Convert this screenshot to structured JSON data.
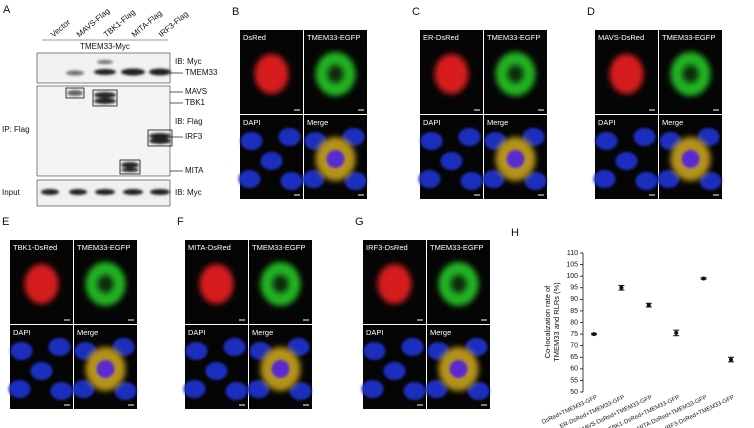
{
  "panel_a": {
    "letter": "A",
    "lanes": [
      "Vector",
      "MAVS-Flag",
      "TBK1-Flag",
      "MITA-Flag",
      "IRF3-Flag"
    ],
    "header": "TMEM33-Myc",
    "blot_labels": [
      "IB: Myc",
      "TMEM33",
      "MAVS",
      "TBK1",
      "IB: Flag",
      "IRF3",
      "MITA",
      "IB: Myc"
    ],
    "row_labels": [
      "IP: Flag",
      "Input"
    ]
  },
  "image_panels": [
    {
      "letter": "B",
      "labels": [
        "DsRed",
        "TMEM33-EGFP",
        "DAPI",
        "Merge"
      ]
    },
    {
      "letter": "C",
      "labels": [
        "ER-DsRed",
        "TMEM33-EGFP",
        "DAPI",
        "Merge"
      ]
    },
    {
      "letter": "D",
      "labels": [
        "MAVS-DsRed",
        "TMEM33-EGFP",
        "DAPI",
        "Merge"
      ]
    },
    {
      "letter": "E",
      "labels": [
        "TBK1-DsRed",
        "TMEM33-EGFP",
        "DAPI",
        "Merge"
      ]
    },
    {
      "letter": "F",
      "labels": [
        "MITA-DsRed",
        "TMEM33-EGFP",
        "DAPI",
        "Merge"
      ]
    },
    {
      "letter": "G",
      "labels": [
        "IRF3-DsRed",
        "TMEM33-EGFP",
        "DAPI",
        "Merge"
      ]
    }
  ],
  "chart_data": {
    "type": "point",
    "panel_letter": "H",
    "ylabel": [
      "Co-localization rate of",
      "TMEM33 and RLRs (%)"
    ],
    "categories": [
      "DsRed+TMEM33-GFP",
      "ER-DsRed+TMEM33-GFP",
      "MAVS-DsRed+TMEM33-GFP",
      "TBK1-DsRed+TMEM33-GFP",
      "MITA-DsRed+TMEM33-GFP",
      "IRF3-DsRed+TMEM33-GFP"
    ],
    "values": [
      75,
      95,
      87.5,
      75.5,
      99,
      64
    ],
    "errors": [
      0.3,
      1,
      0.8,
      1.2,
      0.3,
      1
    ],
    "color": "#111111",
    "ylim": [
      50,
      110
    ],
    "yticks": [
      50,
      55,
      60,
      65,
      70,
      75,
      80,
      85,
      90,
      95,
      100,
      105,
      110
    ]
  }
}
